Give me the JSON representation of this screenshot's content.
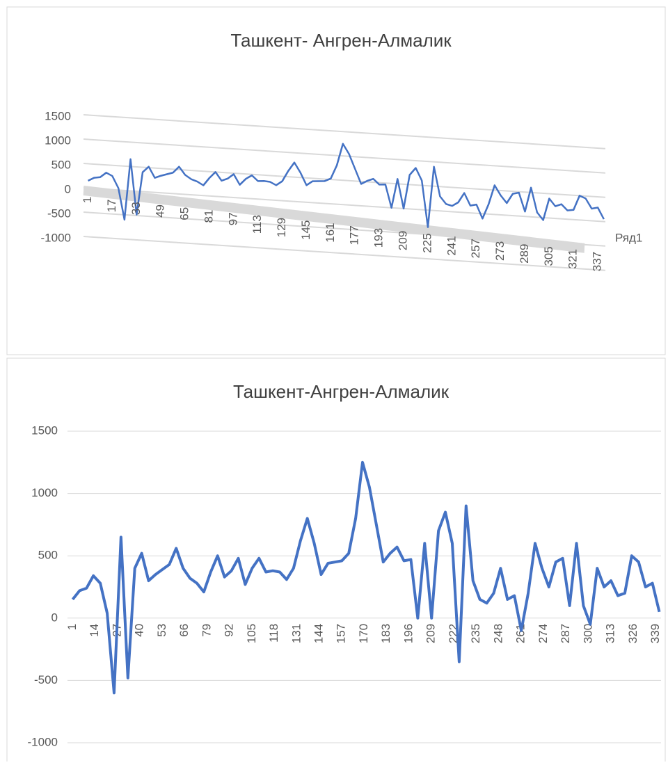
{
  "chart_data": [
    {
      "type": "line",
      "title": "Ташкент- Ангрен-Алмалик",
      "legend": "right",
      "grid": true,
      "x": [
        1,
        5,
        9,
        13,
        17,
        21,
        25,
        29,
        33,
        37,
        41,
        45,
        49,
        53,
        57,
        61,
        65,
        69,
        73,
        77,
        81,
        85,
        89,
        93,
        97,
        101,
        105,
        109,
        113,
        117,
        121,
        125,
        129,
        133,
        137,
        141,
        145,
        149,
        153,
        157,
        161,
        165,
        169,
        173,
        177,
        181,
        185,
        189,
        193,
        197,
        201,
        205,
        209,
        213,
        217,
        221,
        225,
        229,
        233,
        237,
        241,
        245,
        249,
        253,
        257,
        261,
        265,
        269,
        273,
        277,
        281,
        285,
        289,
        293,
        297,
        301,
        305,
        309,
        313,
        317,
        321,
        325,
        329,
        333,
        337,
        341
      ],
      "series": [
        {
          "name": "Ряд1",
          "color": "#4472c4",
          "values": [
            150,
            220,
            240,
            340,
            280,
            40,
            -600,
            650,
            -480,
            400,
            520,
            300,
            350,
            390,
            430,
            560,
            400,
            320,
            280,
            210,
            370,
            500,
            330,
            380,
            480,
            270,
            400,
            480,
            370,
            380,
            370,
            310,
            400,
            620,
            800,
            600,
            350,
            440,
            450,
            460,
            520,
            800,
            1250,
            1050,
            750,
            450,
            520,
            570,
            460,
            470,
            0,
            600,
            0,
            700,
            850,
            600,
            -350,
            900,
            300,
            150,
            120,
            200,
            400,
            150,
            180,
            -100,
            200,
            600,
            400,
            250,
            450,
            480,
            100,
            600,
            100,
            -50,
            400,
            250,
            300,
            180,
            200,
            500,
            450,
            250,
            280,
            50
          ]
        }
      ],
      "xlim": [
        -2,
        342
      ],
      "xticks": [
        1,
        17,
        33,
        49,
        65,
        81,
        97,
        113,
        129,
        145,
        161,
        177,
        193,
        209,
        225,
        241,
        257,
        273,
        289,
        305,
        321,
        337
      ],
      "ylim": [
        -1000,
        1500
      ],
      "yticks": [
        -1000,
        -500,
        0,
        500,
        1000,
        1500
      ]
    },
    {
      "type": "line",
      "title": "Ташкент-Ангрен-Алмалик",
      "grid": true,
      "x": [
        1,
        5,
        9,
        13,
        17,
        21,
        25,
        29,
        33,
        37,
        41,
        45,
        49,
        53,
        57,
        61,
        65,
        69,
        73,
        77,
        81,
        85,
        89,
        93,
        97,
        101,
        105,
        109,
        113,
        117,
        121,
        125,
        129,
        133,
        137,
        141,
        145,
        149,
        153,
        157,
        161,
        165,
        169,
        173,
        177,
        181,
        185,
        189,
        193,
        197,
        201,
        205,
        209,
        213,
        217,
        221,
        225,
        229,
        233,
        237,
        241,
        245,
        249,
        253,
        257,
        261,
        265,
        269,
        273,
        277,
        281,
        285,
        289,
        293,
        297,
        301,
        305,
        309,
        313,
        317,
        321,
        325,
        329,
        333,
        337,
        341
      ],
      "series": [
        {
          "color": "#4472c4",
          "values": [
            150,
            220,
            240,
            340,
            280,
            40,
            -600,
            650,
            -480,
            400,
            520,
            300,
            350,
            390,
            430,
            560,
            400,
            320,
            280,
            210,
            370,
            500,
            330,
            380,
            480,
            270,
            400,
            480,
            370,
            380,
            370,
            310,
            400,
            620,
            800,
            600,
            350,
            440,
            450,
            460,
            520,
            800,
            1250,
            1050,
            750,
            450,
            520,
            570,
            460,
            470,
            0,
            600,
            0,
            700,
            850,
            600,
            -350,
            900,
            300,
            150,
            120,
            200,
            400,
            150,
            180,
            -100,
            200,
            600,
            400,
            250,
            450,
            480,
            100,
            600,
            100,
            -50,
            400,
            250,
            300,
            180,
            200,
            500,
            450,
            250,
            280,
            50
          ]
        }
      ],
      "xlim": [
        -2,
        342
      ],
      "xticks": [
        1,
        14,
        27,
        40,
        53,
        66,
        79,
        92,
        105,
        118,
        131,
        144,
        157,
        170,
        183,
        196,
        209,
        222,
        235,
        248,
        261,
        274,
        287,
        300,
        313,
        326,
        339
      ],
      "ylim": [
        -1000,
        1500
      ],
      "yticks": [
        -1000,
        -500,
        0,
        500,
        1000,
        1500
      ]
    }
  ]
}
